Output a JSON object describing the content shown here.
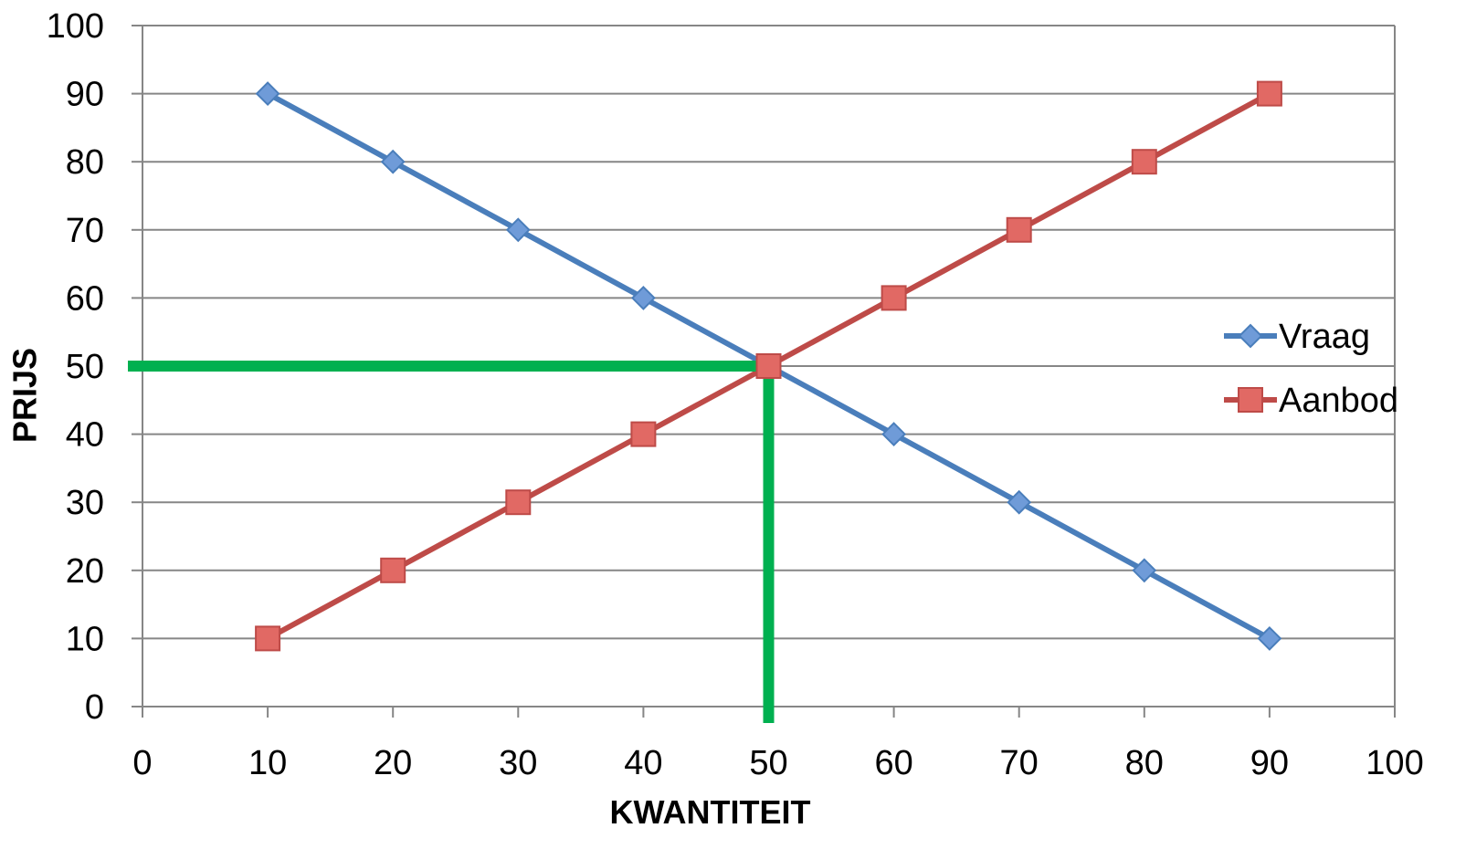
{
  "chart_data": {
    "type": "line",
    "title": "",
    "xlabel": "KWANTITEIT",
    "ylabel": "PRIJS",
    "xlim": [
      0,
      100
    ],
    "ylim": [
      0,
      100
    ],
    "x_ticks": [
      0,
      10,
      20,
      30,
      40,
      50,
      60,
      70,
      80,
      90,
      100
    ],
    "y_ticks": [
      0,
      10,
      20,
      30,
      40,
      50,
      60,
      70,
      80,
      90,
      100
    ],
    "grid": "horizontal",
    "legend_position": "right",
    "series": [
      {
        "name": "Vraag",
        "color": "#4a7ebb",
        "marker": "diamond",
        "x": [
          10,
          20,
          30,
          40,
          50,
          60,
          70,
          80,
          90
        ],
        "y": [
          90,
          80,
          70,
          60,
          50,
          40,
          30,
          20,
          10
        ]
      },
      {
        "name": "Aanbod",
        "color": "#be4b48",
        "marker": "square",
        "x": [
          10,
          20,
          30,
          40,
          50,
          60,
          70,
          80,
          90
        ],
        "y": [
          10,
          20,
          30,
          40,
          50,
          60,
          70,
          80,
          90
        ]
      }
    ],
    "equilibrium": {
      "x": 50,
      "y": 50,
      "color": "#00b050"
    },
    "colors": {
      "axis": "#868686",
      "grid": "#868686",
      "marker_fill_vraag": "#6f9bd8",
      "marker_fill_aanbod": "#e16964"
    }
  }
}
